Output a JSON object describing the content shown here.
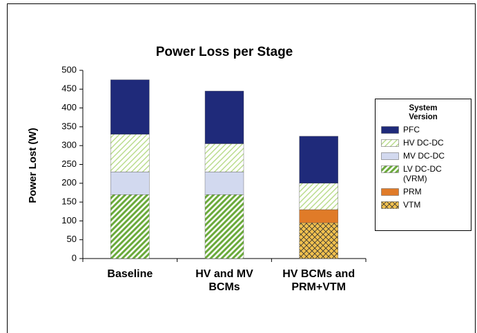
{
  "chart_data": {
    "type": "stacked_bar",
    "title": "Power Loss per Stage",
    "y_label": "Power Lost (W)",
    "categories": [
      "Baseline",
      "HV and MV BCMs",
      "HV BCMs and PRM+VTM"
    ],
    "legend_title": "System Version",
    "legend_position": "right",
    "ylim": [
      0,
      500
    ],
    "yticks": [
      0,
      50,
      100,
      150,
      200,
      250,
      300,
      350,
      400,
      450,
      500
    ],
    "series": [
      {
        "name": "VTM",
        "color": "#f2c14e",
        "pattern": "crosshatch",
        "values": [
          0,
          0,
          95
        ]
      },
      {
        "name": "PRM",
        "color": "#e07b28",
        "pattern": "solid",
        "values": [
          0,
          0,
          35
        ]
      },
      {
        "name": "LV DC-DC (VRM)",
        "color": "#6aaa3a",
        "pattern": "stripes",
        "values": [
          170,
          170,
          0
        ]
      },
      {
        "name": "MV DC-DC",
        "color": "#d2d9ef",
        "pattern": "solid",
        "values": [
          60,
          60,
          0
        ]
      },
      {
        "name": "HV DC-DC",
        "color": "#b9dc8c",
        "pattern": "hatch",
        "values": [
          100,
          75,
          70
        ]
      },
      {
        "name": "PFC",
        "color": "#1f2a7a",
        "pattern": "solid",
        "values": [
          145,
          140,
          125
        ]
      }
    ]
  }
}
